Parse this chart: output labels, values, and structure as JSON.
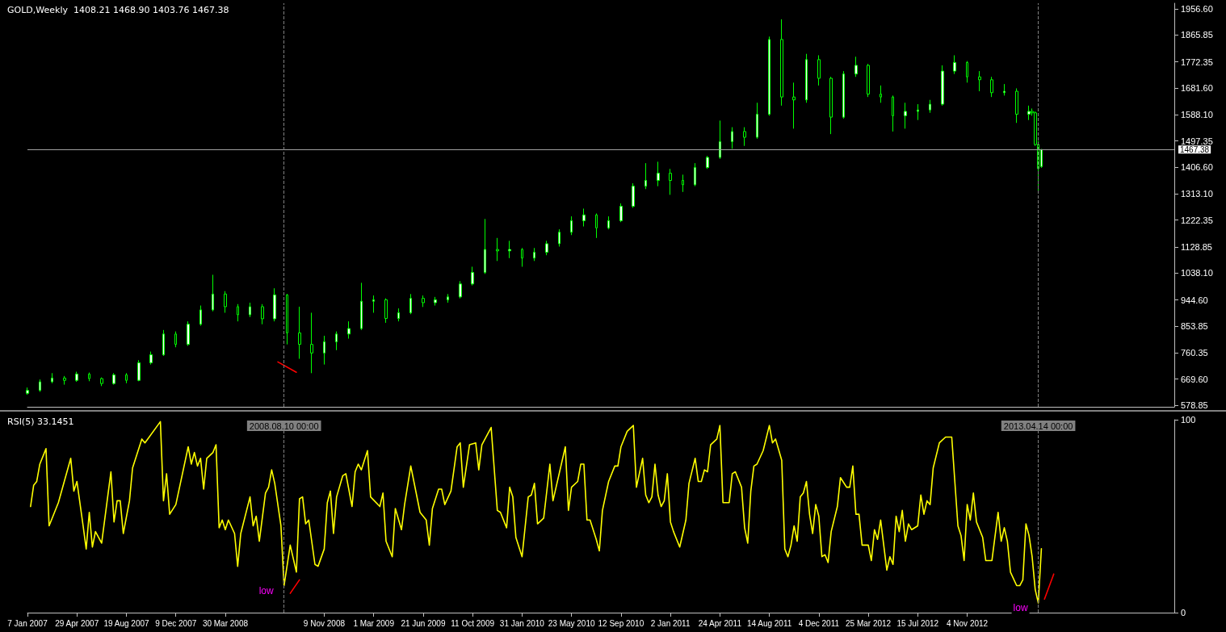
{
  "chart_data": [
    {
      "type": "candlestick",
      "title": "GOLD,Weekly  1408.21 1468.90 1403.76 1467.38",
      "color": "#00ff00",
      "x": [
        "2007-01-07",
        "2007-02-04",
        "2007-03-04",
        "2007-04-01",
        "2007-04-29",
        "2007-05-27",
        "2007-06-24",
        "2007-07-22",
        "2007-08-19",
        "2007-09-16",
        "2007-10-14",
        "2007-11-11",
        "2007-12-09",
        "2008-01-06",
        "2008-02-03",
        "2008-03-02",
        "2008-03-30",
        "2008-04-27",
        "2008-05-25",
        "2008-06-22",
        "2008-07-20",
        "2008-08-17",
        "2008-09-14",
        "2008-10-12",
        "2008-11-09",
        "2008-12-07",
        "2009-01-04",
        "2009-02-01",
        "2009-03-01",
        "2009-03-29",
        "2009-04-26",
        "2009-05-24",
        "2009-06-21",
        "2009-07-19",
        "2009-08-16",
        "2009-09-13",
        "2009-10-11",
        "2009-11-08",
        "2009-12-06",
        "2010-01-03",
        "2010-01-31",
        "2010-02-28",
        "2010-03-28",
        "2010-04-25",
        "2010-05-23",
        "2010-06-20",
        "2010-07-18",
        "2010-08-15",
        "2010-09-12",
        "2010-10-10",
        "2010-11-07",
        "2010-12-05",
        "2011-01-02",
        "2011-01-30",
        "2011-02-27",
        "2011-03-27",
        "2011-04-24",
        "2011-05-22",
        "2011-06-19",
        "2011-07-17",
        "2011-08-14",
        "2011-09-11",
        "2011-10-09",
        "2011-11-06",
        "2011-12-04",
        "2012-01-01",
        "2012-01-29",
        "2012-02-26",
        "2012-03-25",
        "2012-04-22",
        "2012-05-20",
        "2012-06-17",
        "2012-07-15",
        "2012-08-12",
        "2012-09-09",
        "2012-10-07",
        "2012-11-04",
        "2012-12-02",
        "2012-12-30",
        "2013-01-27",
        "2013-02-24",
        "2013-03-24",
        "2013-03-31",
        "2013-04-07",
        "2013-04-14",
        "2013-04-21"
      ],
      "ohlc": [
        [
          620,
          640,
          615,
          630
        ],
        [
          630,
          668,
          625,
          660
        ],
        [
          660,
          690,
          655,
          673
        ],
        [
          673,
          680,
          650,
          665
        ],
        [
          665,
          695,
          660,
          687
        ],
        [
          687,
          692,
          662,
          671
        ],
        [
          671,
          675,
          645,
          654
        ],
        [
          654,
          690,
          650,
          684
        ],
        [
          684,
          690,
          655,
          665
        ],
        [
          665,
          735,
          662,
          726
        ],
        [
          726,
          765,
          720,
          754
        ],
        [
          754,
          840,
          750,
          826
        ],
        [
          826,
          835,
          780,
          790
        ],
        [
          790,
          870,
          785,
          860
        ],
        [
          860,
          925,
          855,
          910
        ],
        [
          910,
          1032,
          905,
          965
        ],
        [
          965,
          975,
          900,
          921
        ],
        [
          921,
          930,
          870,
          893
        ],
        [
          893,
          935,
          885,
          921
        ],
        [
          921,
          930,
          860,
          879
        ],
        [
          879,
          985,
          870,
          962
        ],
        [
          962,
          965,
          790,
          830
        ],
        [
          830,
          921,
          740,
          790
        ],
        [
          790,
          900,
          690,
          760
        ],
        [
          760,
          820,
          720,
          799
        ],
        [
          799,
          835,
          770,
          826
        ],
        [
          826,
          870,
          810,
          845
        ],
        [
          845,
          1004,
          840,
          940
        ],
        [
          940,
          960,
          900,
          945
        ],
        [
          945,
          950,
          865,
          880
        ],
        [
          880,
          915,
          870,
          900
        ],
        [
          900,
          965,
          895,
          950
        ],
        [
          950,
          960,
          920,
          935
        ],
        [
          935,
          955,
          925,
          945
        ],
        [
          945,
          965,
          935,
          955
        ],
        [
          955,
          1010,
          950,
          1000
        ],
        [
          1000,
          1060,
          995,
          1040
        ],
        [
          1040,
          1226,
          1035,
          1120
        ],
        [
          1120,
          1160,
          1080,
          1115
        ],
        [
          1115,
          1150,
          1090,
          1120
        ],
        [
          1120,
          1125,
          1060,
          1090
        ],
        [
          1090,
          1125,
          1080,
          1110
        ],
        [
          1110,
          1150,
          1100,
          1140
        ],
        [
          1140,
          1190,
          1130,
          1180
        ],
        [
          1180,
          1235,
          1170,
          1220
        ],
        [
          1220,
          1262,
          1200,
          1240
        ],
        [
          1240,
          1245,
          1160,
          1195
        ],
        [
          1195,
          1235,
          1190,
          1220
        ],
        [
          1220,
          1280,
          1215,
          1270
        ],
        [
          1270,
          1350,
          1265,
          1340
        ],
        [
          1340,
          1420,
          1330,
          1360
        ],
        [
          1360,
          1425,
          1340,
          1385
        ],
        [
          1385,
          1400,
          1310,
          1360
        ],
        [
          1360,
          1380,
          1320,
          1345
        ],
        [
          1345,
          1420,
          1340,
          1405
        ],
        [
          1405,
          1445,
          1400,
          1440
        ],
        [
          1440,
          1568,
          1435,
          1495
        ],
        [
          1495,
          1545,
          1470,
          1530
        ],
        [
          1530,
          1545,
          1480,
          1510
        ],
        [
          1510,
          1630,
          1505,
          1590
        ],
        [
          1590,
          1860,
          1585,
          1850
        ],
        [
          1850,
          1920,
          1620,
          1650
        ],
        [
          1650,
          1700,
          1540,
          1640
        ],
        [
          1640,
          1800,
          1630,
          1780
        ],
        [
          1780,
          1795,
          1690,
          1715
        ],
        [
          1715,
          1720,
          1521,
          1580
        ],
        [
          1580,
          1740,
          1575,
          1730
        ],
        [
          1730,
          1790,
          1720,
          1760
        ],
        [
          1760,
          1765,
          1650,
          1660
        ],
        [
          1660,
          1690,
          1630,
          1650
        ],
        [
          1650,
          1655,
          1530,
          1585
        ],
        [
          1585,
          1630,
          1540,
          1600
        ],
        [
          1600,
          1625,
          1570,
          1605
        ],
        [
          1605,
          1640,
          1595,
          1625
        ],
        [
          1625,
          1760,
          1620,
          1740
        ],
        [
          1740,
          1795,
          1730,
          1770
        ],
        [
          1770,
          1775,
          1700,
          1720
        ],
        [
          1720,
          1740,
          1670,
          1710
        ],
        [
          1710,
          1720,
          1650,
          1665
        ],
        [
          1665,
          1695,
          1655,
          1670
        ],
        [
          1670,
          1680,
          1560,
          1590
        ],
        [
          1590,
          1620,
          1570,
          1600
        ],
        [
          1600,
          1610,
          1585,
          1595
        ],
        [
          1595,
          1600,
          1480,
          1485
        ],
        [
          1485,
          1497,
          1318,
          1401
        ],
        [
          1408.21,
          1468.9,
          1403.76,
          1467.38
        ]
      ],
      "series": [
        {
          "type": "line",
          "color": "#ff0000",
          "x": [
            "2008-07-27",
            "2008-09-07"
          ],
          "values": [
            729,
            693
          ]
        }
      ],
      "xlim": [
        "2007-01-07",
        "2014-02-16"
      ],
      "ylim": [
        573,
        1976
      ],
      "yticks": [
        {
          "value": 578.85,
          "label": "578.85"
        },
        {
          "value": 669.6,
          "label": "669.60"
        },
        {
          "value": 760.35,
          "label": "760.35"
        },
        {
          "value": 853.85,
          "label": "853.85"
        },
        {
          "value": 944.6,
          "label": "944.60"
        },
        {
          "value": 1038.1,
          "label": "1038.10"
        },
        {
          "value": 1128.85,
          "label": "1128.85"
        },
        {
          "value": 1222.35,
          "label": "1222.35"
        },
        {
          "value": 1313.1,
          "label": "1313.10"
        },
        {
          "value": 1406.6,
          "label": "1406.60"
        },
        {
          "value": 1497.35,
          "label": "1497.35"
        },
        {
          "value": 1588.1,
          "label": "1588.10"
        },
        {
          "value": 1681.6,
          "label": "1681.60"
        },
        {
          "value": 1772.35,
          "label": "1772.35"
        },
        {
          "value": 1865.85,
          "label": "1865.85"
        },
        {
          "value": 1956.6,
          "label": "1956.60"
        }
      ],
      "tick_labels": "y",
      "ref_lines": [
        {
          "axis": "y",
          "value": 1467.38,
          "label": "1467.38",
          "color": "#a0a0a0",
          "line_style": "solid"
        },
        {
          "axis": "x",
          "value": "2008-08-10",
          "color": "#808080",
          "line_style": "dashed"
        },
        {
          "axis": "x",
          "value": "2013-04-14",
          "color": "#808080",
          "line_style": "dashed"
        }
      ]
    },
    {
      "type": "line",
      "title": "RSI(5) 33.1451",
      "marker": "none",
      "series": [
        {
          "color": "#ffff00",
          "x": [
            "2007-01-14",
            "2007-01-21",
            "2007-01-28",
            "2007-02-04",
            "2007-02-18",
            "2007-02-25",
            "2007-03-18",
            "2007-04-15",
            "2007-04-22",
            "2007-04-29",
            "2007-05-13",
            "2007-05-20",
            "2007-05-27",
            "2007-06-03",
            "2007-06-10",
            "2007-06-24",
            "2007-07-15",
            "2007-07-22",
            "2007-07-29",
            "2007-08-05",
            "2007-08-12",
            "2007-08-26",
            "2007-09-02",
            "2007-09-23",
            "2007-09-30",
            "2007-11-04",
            "2007-11-11",
            "2007-11-18",
            "2007-11-25",
            "2007-12-09",
            "2008-01-06",
            "2008-01-13",
            "2008-01-20",
            "2008-01-27",
            "2008-02-03",
            "2008-02-10",
            "2008-02-17",
            "2008-03-02",
            "2008-03-09",
            "2008-03-16",
            "2008-03-23",
            "2008-03-30",
            "2008-04-06",
            "2008-04-20",
            "2008-04-27",
            "2008-05-04",
            "2008-05-25",
            "2008-06-01",
            "2008-06-08",
            "2008-06-15",
            "2008-06-29",
            "2008-07-06",
            "2008-07-13",
            "2008-07-20",
            "2008-08-03",
            "2008-08-10",
            "2008-08-24",
            "2008-09-07",
            "2008-09-14",
            "2008-09-21",
            "2008-09-28",
            "2008-10-05",
            "2008-10-19",
            "2008-10-26",
            "2008-11-09",
            "2008-11-16",
            "2008-11-23",
            "2008-11-30",
            "2008-12-07",
            "2008-12-21",
            "2008-12-28",
            "2009-01-11",
            "2009-01-18",
            "2009-01-25",
            "2009-02-01",
            "2009-02-15",
            "2009-02-22",
            "2009-03-15",
            "2009-03-22",
            "2009-03-29",
            "2009-04-12",
            "2009-04-19",
            "2009-05-03",
            "2009-05-10",
            "2009-05-24",
            "2009-06-14",
            "2009-06-28",
            "2009-07-05",
            "2009-07-12",
            "2009-07-26",
            "2009-08-02",
            "2009-08-09",
            "2009-08-23",
            "2009-09-06",
            "2009-09-13",
            "2009-09-20",
            "2009-10-04",
            "2009-10-18",
            "2009-10-25",
            "2009-11-01",
            "2009-11-22",
            "2009-12-06",
            "2009-12-13",
            "2009-12-27",
            "2010-01-03",
            "2010-01-10",
            "2010-01-17",
            "2010-01-31",
            "2010-02-14",
            "2010-02-21",
            "2010-02-28",
            "2010-03-07",
            "2010-03-21",
            "2010-04-04",
            "2010-04-11",
            "2010-05-09",
            "2010-05-16",
            "2010-05-23",
            "2010-06-06",
            "2010-06-13",
            "2010-06-20",
            "2010-06-27",
            "2010-07-04",
            "2010-07-18",
            "2010-07-25",
            "2010-08-01",
            "2010-08-15",
            "2010-08-29",
            "2010-09-05",
            "2010-09-12",
            "2010-09-26",
            "2010-10-10",
            "2010-10-17",
            "2010-10-31",
            "2010-11-07",
            "2010-11-14",
            "2010-11-21",
            "2010-11-28",
            "2010-12-05",
            "2010-12-12",
            "2010-12-19",
            "2010-12-26",
            "2011-01-02",
            "2011-01-09",
            "2011-01-23",
            "2011-02-06",
            "2011-02-13",
            "2011-02-27",
            "2011-03-06",
            "2011-03-13",
            "2011-03-20",
            "2011-03-27",
            "2011-04-03",
            "2011-04-17",
            "2011-04-24",
            "2011-05-01",
            "2011-05-15",
            "2011-05-22",
            "2011-05-29",
            "2011-06-12",
            "2011-06-19",
            "2011-06-26",
            "2011-07-03",
            "2011-07-10",
            "2011-07-17",
            "2011-07-31",
            "2011-08-14",
            "2011-08-21",
            "2011-08-28",
            "2011-09-11",
            "2011-09-18",
            "2011-09-25",
            "2011-10-02",
            "2011-10-09",
            "2011-10-16",
            "2011-10-23",
            "2011-10-30",
            "2011-11-06",
            "2011-11-13",
            "2011-11-20",
            "2011-11-27",
            "2011-12-04",
            "2011-12-11",
            "2011-12-18",
            "2011-12-25",
            "2012-01-01",
            "2012-01-15",
            "2012-01-22",
            "2012-02-05",
            "2012-02-12",
            "2012-02-19",
            "2012-02-26",
            "2012-03-04",
            "2012-03-11",
            "2012-03-25",
            "2012-04-01",
            "2012-04-08",
            "2012-04-15",
            "2012-04-22",
            "2012-05-06",
            "2012-05-13",
            "2012-05-20",
            "2012-05-27",
            "2012-06-03",
            "2012-06-10",
            "2012-06-17",
            "2012-06-24",
            "2012-07-01",
            "2012-07-15",
            "2012-07-22",
            "2012-07-29",
            "2012-08-05",
            "2012-08-12",
            "2012-08-19",
            "2012-09-02",
            "2012-09-16",
            "2012-09-30",
            "2012-10-14",
            "2012-10-21",
            "2012-10-28",
            "2012-11-04",
            "2012-11-11",
            "2012-11-18",
            "2012-11-25",
            "2012-12-09",
            "2012-12-16",
            "2012-12-30",
            "2013-01-13",
            "2013-01-20",
            "2013-01-27",
            "2013-02-03",
            "2013-02-10",
            "2013-02-24",
            "2013-03-03",
            "2013-03-10",
            "2013-03-17",
            "2013-03-24",
            "2013-03-31",
            "2013-04-07",
            "2013-04-14",
            "2013-04-21"
          ],
          "values": [
            55,
            66,
            68,
            77,
            85,
            45,
            57,
            80,
            63,
            68,
            45,
            33,
            52,
            34,
            42,
            36,
            73,
            47,
            58,
            58,
            41,
            58,
            75,
            90,
            88,
            99,
            58,
            72,
            51,
            56,
            86,
            77,
            83,
            76,
            80,
            64,
            80,
            83,
            87,
            44,
            48,
            43,
            48,
            41,
            24,
            41,
            60,
            45,
            50,
            37,
            62,
            65,
            74,
            67,
            45,
            14,
            35,
            21,
            59,
            60,
            46,
            48,
            25,
            24,
            33,
            57,
            63,
            41,
            60,
            71,
            72,
            55,
            73,
            77,
            74,
            84,
            60,
            55,
            62,
            37,
            29,
            54,
            43,
            56,
            76,
            52,
            48,
            35,
            54,
            64,
            64,
            56,
            63,
            86,
            88,
            65,
            87,
            88,
            74,
            87,
            96,
            53,
            52,
            44,
            65,
            60,
            39,
            29,
            60,
            61,
            67,
            46,
            49,
            77,
            58,
            86,
            53,
            65,
            68,
            77,
            77,
            48,
            48,
            38,
            32,
            53,
            68,
            76,
            76,
            86,
            94,
            97,
            65,
            80,
            61,
            57,
            60,
            77,
            61,
            55,
            58,
            72,
            47,
            42,
            34,
            48,
            67,
            80,
            68,
            68,
            74,
            73,
            87,
            90,
            97,
            57,
            57,
            72,
            73,
            65,
            44,
            36,
            63,
            76,
            77,
            84,
            97,
            88,
            90,
            79,
            33,
            29,
            35,
            45,
            37,
            60,
            62,
            68,
            51,
            41,
            56,
            50,
            29,
            30,
            26,
            42,
            55,
            70,
            65,
            65,
            76,
            51,
            51,
            35,
            35,
            27,
            43,
            38,
            48,
            22,
            29,
            25,
            50,
            42,
            53,
            37,
            46,
            43,
            45,
            61,
            51,
            58,
            56,
            75,
            88,
            91,
            91,
            45,
            40,
            27,
            56,
            48,
            62,
            47,
            39,
            27,
            27,
            52,
            37,
            44,
            37,
            21,
            14,
            14,
            17,
            46,
            40,
            29,
            12,
            5,
            33.1451
          ]
        },
        {
          "color": "#ff0000",
          "x": [
            "2008-08-24",
            "2008-09-14"
          ],
          "values": [
            10,
            17
          ]
        },
        {
          "color": "#ff0000",
          "x": [
            "2013-04-28",
            "2013-05-19"
          ],
          "values": [
            7,
            20
          ]
        }
      ],
      "xlim": [
        "2007-01-07",
        "2014-02-16"
      ],
      "xticks": [
        {
          "value": "2007-01-07",
          "label": "7 Jan 2007"
        },
        {
          "value": "2007-04-29",
          "label": "29 Apr 2007"
        },
        {
          "value": "2007-08-19",
          "label": "19 Aug 2007"
        },
        {
          "value": "2007-12-09",
          "label": "9 Dec 2007"
        },
        {
          "value": "2008-03-30",
          "label": "30 Mar 2008"
        },
        {
          "value": "2008-11-09",
          "label": "9 Nov 2008"
        },
        {
          "value": "2009-03-01",
          "label": "1 Mar 2009"
        },
        {
          "value": "2009-06-21",
          "label": "21 Jun 2009"
        },
        {
          "value": "2009-10-11",
          "label": "11 Oct 2009"
        },
        {
          "value": "2010-01-31",
          "label": "31 Jan 2010"
        },
        {
          "value": "2010-05-23",
          "label": "23 May 2010"
        },
        {
          "value": "2010-09-12",
          "label": "12 Sep 2010"
        },
        {
          "value": "2011-01-02",
          "label": "2 Jan 2011"
        },
        {
          "value": "2011-04-24",
          "label": "24 Apr 2011"
        },
        {
          "value": "2011-08-14",
          "label": "14 Aug 2011"
        },
        {
          "value": "2011-12-04",
          "label": "4 Dec 2011"
        },
        {
          "value": "2012-03-25",
          "label": "25 Mar 2012"
        },
        {
          "value": "2012-07-15",
          "label": "15 Jul 2012"
        },
        {
          "value": "2012-11-04",
          "label": "4 Nov 2012"
        }
      ],
      "ylim": [
        0,
        100
      ],
      "yticks": [
        0,
        100
      ],
      "ref_lines": [
        {
          "axis": "x",
          "value": "2008-08-10",
          "label": "2008.08.10 00:00",
          "color": "#808080",
          "line_style": "dashed"
        },
        {
          "axis": "x",
          "value": "2013-04-14",
          "label": "2013.04.14 00:00",
          "color": "#808080",
          "line_style": "dashed"
        }
      ],
      "annotations": [
        {
          "text": "low",
          "x": "2008-08-10",
          "y": 14
        },
        {
          "text": "low",
          "x": "2013-04-14",
          "y": 5
        }
      ]
    }
  ]
}
